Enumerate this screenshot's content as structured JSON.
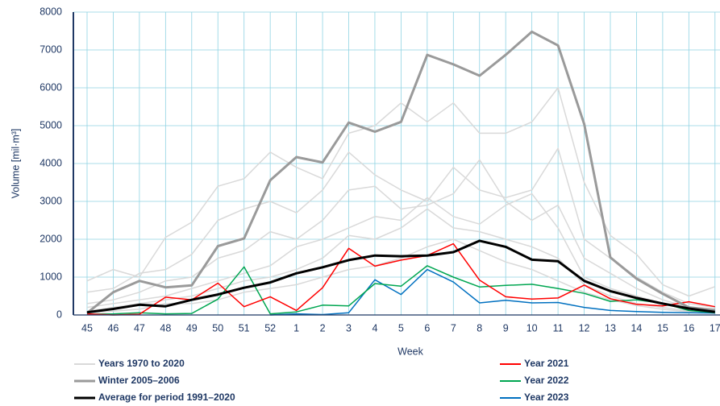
{
  "chart_data": {
    "type": "line",
    "x_label": "Week",
    "y_label": "Volume  [mil·m³]",
    "categories": [
      "45",
      "46",
      "47",
      "48",
      "49",
      "50",
      "51",
      "52",
      "1",
      "2",
      "3",
      "4",
      "5",
      "6",
      "7",
      "8",
      "9",
      "10",
      "11",
      "12",
      "13",
      "14",
      "15",
      "16",
      "17"
    ],
    "ylim": [
      0,
      8000
    ],
    "yticks": [
      0,
      1000,
      2000,
      3000,
      4000,
      5000,
      6000,
      7000,
      8000
    ],
    "grid": true,
    "background": {
      "name": "Years 1970 to 2020",
      "color": "#d9d9d9",
      "lines": [
        [
          900,
          1200,
          1000,
          2050,
          2450,
          3400,
          3600,
          4300,
          3900,
          3600,
          4800,
          5000,
          5600,
          5100,
          5600,
          4800,
          4800,
          5100,
          6000,
          3500,
          2100,
          1600,
          800,
          500,
          750
        ],
        [
          600,
          700,
          1100,
          1200,
          1600,
          2500,
          2800,
          3000,
          2700,
          3300,
          4300,
          3700,
          3300,
          3000,
          3900,
          3300,
          3100,
          3300,
          4400,
          2000,
          1500,
          1000,
          600,
          300,
          200
        ],
        [
          300,
          400,
          600,
          900,
          1000,
          1500,
          1700,
          2200,
          2000,
          2500,
          3300,
          3400,
          2800,
          2900,
          3200,
          4100,
          3000,
          2500,
          2900,
          1500,
          1100,
          700,
          400,
          200,
          150
        ],
        [
          200,
          300,
          400,
          500,
          700,
          900,
          1100,
          1300,
          1800,
          2000,
          2300,
          2600,
          2500,
          3100,
          2600,
          2400,
          2900,
          3200,
          2300,
          1000,
          700,
          500,
          300,
          150,
          100
        ],
        [
          100,
          200,
          300,
          400,
          500,
          700,
          900,
          1000,
          1200,
          1500,
          2100,
          2000,
          2300,
          2800,
          2300,
          2200,
          2000,
          1800,
          1500,
          800,
          500,
          300,
          200,
          100,
          80
        ],
        [
          50,
          100,
          150,
          300,
          300,
          400,
          600,
          700,
          800,
          1000,
          1200,
          1300,
          1500,
          1800,
          2000,
          1700,
          1400,
          1200,
          900,
          600,
          400,
          250,
          150,
          80,
          50
        ]
      ]
    },
    "series": [
      {
        "name": "Winter 2005–2006",
        "color": "#9a9a9a",
        "width": 3,
        "values": [
          50,
          600,
          900,
          730,
          780,
          1820,
          2020,
          3560,
          4170,
          4030,
          5080,
          4840,
          5100,
          6870,
          6620,
          6320,
          6870,
          7480,
          7120,
          5040,
          1520,
          960,
          560,
          200,
          130
        ]
      },
      {
        "name": "Average for period 1991–2020",
        "color": "#000000",
        "width": 3,
        "values": [
          70,
          160,
          270,
          230,
          400,
          540,
          720,
          860,
          1100,
          1260,
          1450,
          1570,
          1550,
          1570,
          1660,
          1960,
          1800,
          1460,
          1420,
          900,
          630,
          450,
          300,
          170,
          80
        ]
      },
      {
        "name": "Year 2021",
        "color": "#ff0000",
        "width": 1.5,
        "values": [
          30,
          0,
          20,
          470,
          400,
          840,
          220,
          480,
          120,
          720,
          1760,
          1290,
          1450,
          1570,
          1880,
          920,
          480,
          420,
          450,
          790,
          430,
          280,
          240,
          350,
          220
        ]
      },
      {
        "name": "Year 2022",
        "color": "#00a651",
        "width": 1.5,
        "values": [
          20,
          30,
          60,
          30,
          40,
          420,
          1270,
          30,
          80,
          260,
          240,
          830,
          760,
          1300,
          1000,
          740,
          780,
          810,
          700,
          570,
          360,
          400,
          310,
          120,
          60
        ]
      },
      {
        "name": "Year 2023",
        "color": "#0070c0",
        "width": 1.5,
        "values": [
          null,
          null,
          null,
          null,
          null,
          null,
          null,
          0,
          30,
          10,
          60,
          930,
          540,
          1200,
          870,
          320,
          390,
          320,
          330,
          200,
          120,
          90,
          70,
          60,
          50
        ]
      }
    ]
  }
}
